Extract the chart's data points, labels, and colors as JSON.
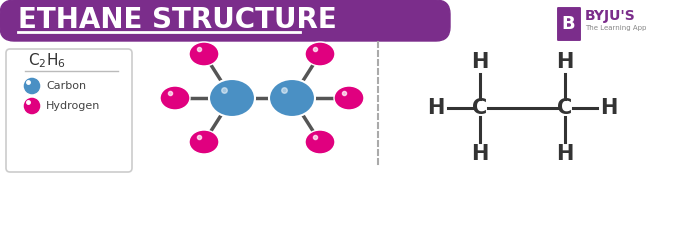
{
  "title": "ETHANE STRUCTURE",
  "title_bg_color": "#7B2D8B",
  "title_text_color": "#FFFFFF",
  "bg_color": "#FFFFFF",
  "carbon_color": "#4A90C4",
  "hydrogen_color": "#E0007F",
  "legend_formula": "C₂H₆",
  "legend_carbon_label": "Carbon",
  "legend_hydrogen_label": "Hydrogen",
  "bond_color": "#555555",
  "structure_text_color": "#444444",
  "dashed_line_color": "#AAAAAA",
  "byju_purple": "#7B2D8B"
}
